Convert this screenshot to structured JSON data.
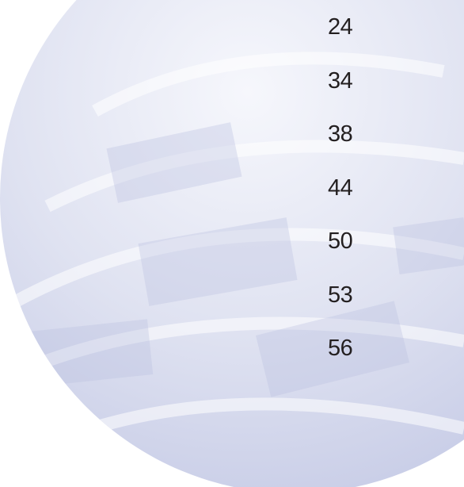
{
  "page_numbers": [
    24,
    34,
    38,
    44,
    50,
    53,
    56
  ]
}
